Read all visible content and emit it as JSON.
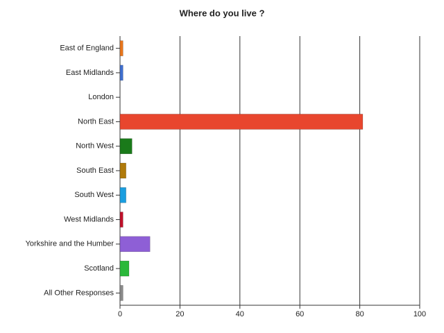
{
  "chart_data": {
    "type": "bar",
    "horizontal": true,
    "title": "Where do you live ?",
    "categories": [
      "East of England",
      "East Midlands",
      "London",
      "North East",
      "North West",
      "South East",
      "South West",
      "West Midlands",
      "Yorkshire and the Humber",
      "Scotland",
      "All Other Responses"
    ],
    "values": [
      1,
      1,
      0,
      81,
      4,
      2,
      2,
      1,
      10,
      3,
      1
    ],
    "colors": [
      "#e8761c",
      "#3f6fcf",
      "#888888",
      "#e8462e",
      "#1a7a1a",
      "#b07a0a",
      "#1a9ee0",
      "#c0102a",
      "#8e5fd6",
      "#2ab83a",
      "#8a8a8a"
    ],
    "xlim": [
      0,
      100
    ],
    "xticks": [
      0,
      20,
      40,
      60,
      80,
      100
    ],
    "grid": true
  }
}
